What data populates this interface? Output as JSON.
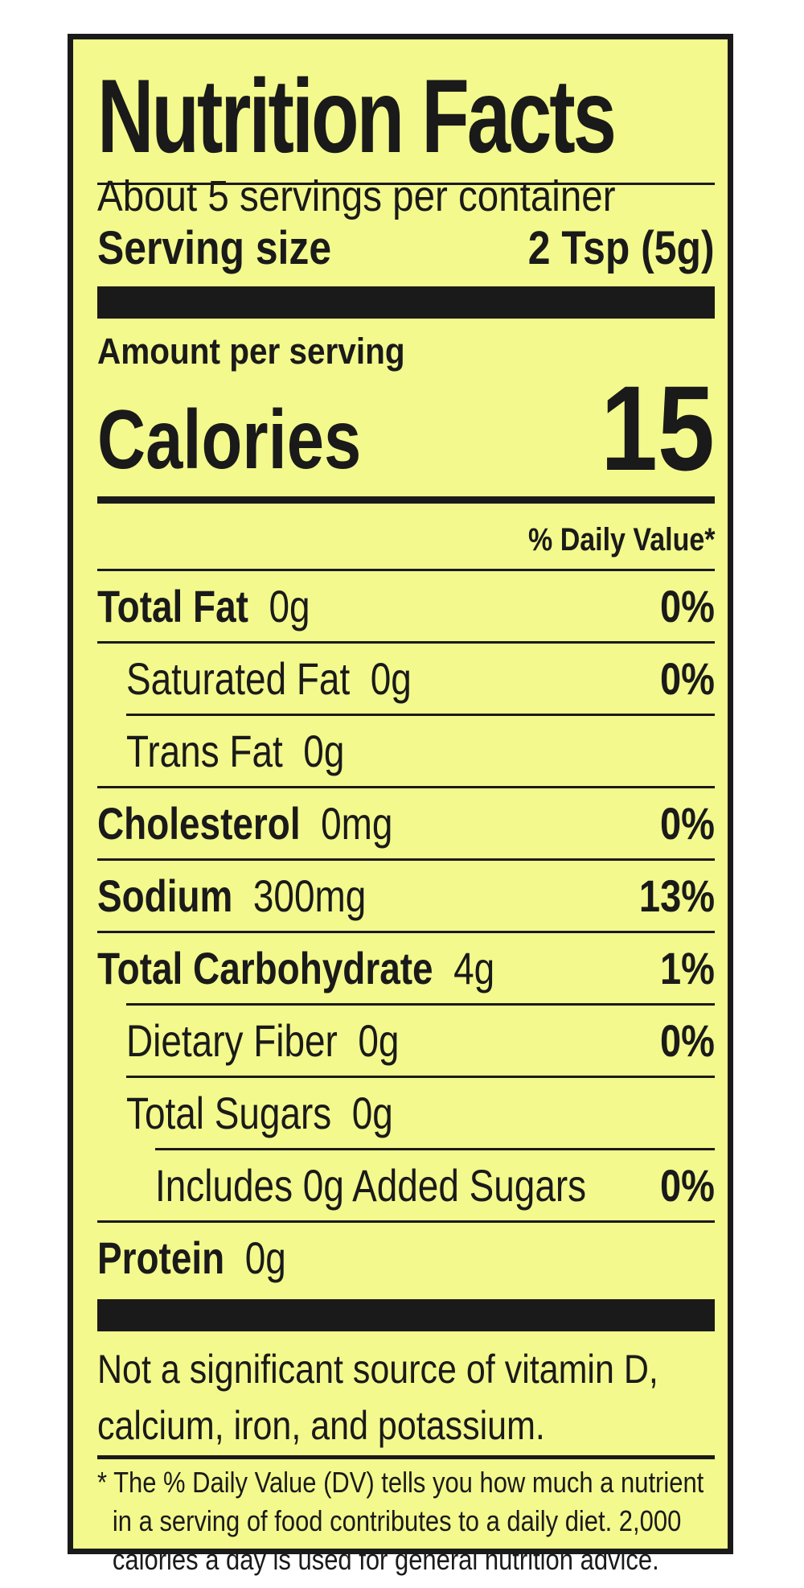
{
  "label": {
    "title": "Nutrition Facts",
    "servings_per_container": "About 5 servings per container",
    "serving_size_label": "Serving size",
    "serving_size_value": "2 Tsp (5g)",
    "amount_per_serving": "Amount per serving",
    "calories_label": "Calories",
    "calories_value": "15",
    "daily_value_header": "% Daily Value*",
    "nutrients": [
      {
        "name": "Total Fat",
        "amount": "0g",
        "dv": "0%"
      },
      {
        "name": "Saturated Fat",
        "amount": "0g",
        "dv": "0%"
      },
      {
        "name": "Trans Fat",
        "amount": "0g",
        "dv": ""
      },
      {
        "name": "Cholesterol",
        "amount": "0mg",
        "dv": "0%"
      },
      {
        "name": "Sodium",
        "amount": "300mg",
        "dv": "13%"
      },
      {
        "name": "Total Carbohydrate",
        "amount": "4g",
        "dv": "1%"
      },
      {
        "name": "Dietary Fiber",
        "amount": "0g",
        "dv": "0%"
      },
      {
        "name": "Total Sugars",
        "amount": "0g",
        "dv": ""
      },
      {
        "name": "Includes 0g Added Sugars",
        "amount": "",
        "dv": "0%"
      },
      {
        "name": "Protein",
        "amount": "0g",
        "dv": ""
      }
    ],
    "vitamin_note_line1": "Not a significant source of vitamin D,",
    "vitamin_note_line2": "calcium, iron, and potassium.",
    "footnote_line1": "* The % Daily Value (DV) tells you how much a nutrient",
    "footnote_line2": "in a serving of food contributes to a daily diet. 2,000",
    "footnote_line3": "calories a day is used for general nutrition advice."
  },
  "colors": {
    "background": "#f3f98c",
    "ink": "#1a1a1a"
  }
}
